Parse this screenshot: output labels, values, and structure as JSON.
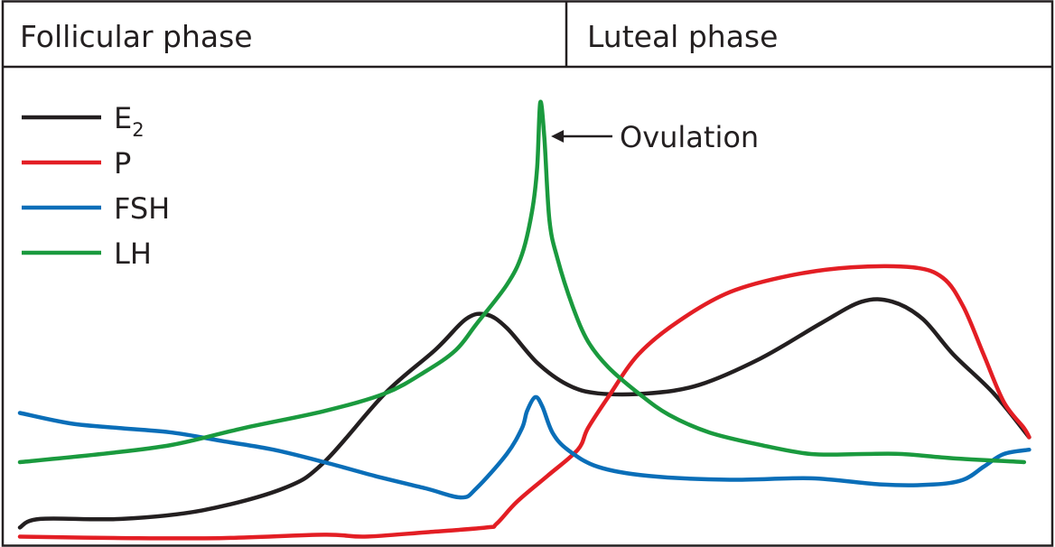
{
  "chart_data": {
    "type": "line",
    "title": "",
    "xlabel": "",
    "ylabel": "",
    "x_range": [
      0,
      100
    ],
    "y_range": [
      0,
      100
    ],
    "grid": false,
    "legend_position": "top-left",
    "phases": [
      {
        "name": "Follicular phase",
        "start": 0,
        "end": 54
      },
      {
        "name": "Luteal phase",
        "start": 54,
        "end": 100
      }
    ],
    "annotation": {
      "text": "Ovulation",
      "x": 51.3,
      "y": 84.0
    },
    "series": [
      {
        "name": "E",
        "name_sub": "2",
        "color": "#231f20",
        "points": [
          [
            0,
            3.7
          ],
          [
            2,
            5.5
          ],
          [
            10,
            5.5
          ],
          [
            18,
            7.3
          ],
          [
            26,
            11.9
          ],
          [
            30,
            17.4
          ],
          [
            36,
            31.8
          ],
          [
            41,
            41.0
          ],
          [
            44,
            47.4
          ],
          [
            46,
            48.3
          ],
          [
            48,
            45.5
          ],
          [
            51,
            38.2
          ],
          [
            54,
            33.6
          ],
          [
            57,
            31.8
          ],
          [
            62,
            31.8
          ],
          [
            67,
            33.6
          ],
          [
            73,
            39.1
          ],
          [
            79,
            46.5
          ],
          [
            83,
            51.0
          ],
          [
            86,
            51.0
          ],
          [
            89,
            47.4
          ],
          [
            92,
            40.0
          ],
          [
            96,
            31.8
          ],
          [
            99.5,
            22.6
          ]
        ]
      },
      {
        "name": "P",
        "color": "#e31e24",
        "points": [
          [
            0,
            1.8
          ],
          [
            10,
            1.5
          ],
          [
            20,
            1.5
          ],
          [
            30,
            2.2
          ],
          [
            34,
            1.8
          ],
          [
            40,
            2.7
          ],
          [
            46,
            3.7
          ],
          [
            47,
            4.5
          ],
          [
            49,
            9.1
          ],
          [
            52,
            14.5
          ],
          [
            55,
            20.0
          ],
          [
            56,
            24.5
          ],
          [
            58,
            31.0
          ],
          [
            61,
            40.0
          ],
          [
            65,
            47.0
          ],
          [
            70,
            53.0
          ],
          [
            76,
            56.5
          ],
          [
            82,
            58.2
          ],
          [
            88,
            58.2
          ],
          [
            91,
            56.0
          ],
          [
            93,
            50.0
          ],
          [
            95,
            40.0
          ],
          [
            97,
            30.0
          ],
          [
            99,
            24.5
          ],
          [
            99.5,
            22.6
          ]
        ]
      },
      {
        "name": "FSH",
        "color": "#0a6eb8",
        "points": [
          [
            0,
            27.7
          ],
          [
            5,
            25.5
          ],
          [
            10,
            24.5
          ],
          [
            15,
            23.6
          ],
          [
            20,
            21.8
          ],
          [
            25,
            20.0
          ],
          [
            30,
            17.4
          ],
          [
            35,
            14.5
          ],
          [
            40,
            11.9
          ],
          [
            43.5,
            10.0
          ],
          [
            45,
            11.9
          ],
          [
            48,
            19.1
          ],
          [
            49.5,
            24.5
          ],
          [
            50,
            28.1
          ],
          [
            50.8,
            31.0
          ],
          [
            51.5,
            29.1
          ],
          [
            52.5,
            23.6
          ],
          [
            54,
            20.0
          ],
          [
            57,
            16.4
          ],
          [
            62,
            14.5
          ],
          [
            70,
            13.7
          ],
          [
            78,
            14.0
          ],
          [
            85,
            12.7
          ],
          [
            90,
            12.7
          ],
          [
            93,
            13.7
          ],
          [
            95,
            16.4
          ],
          [
            97,
            19.1
          ],
          [
            99.5,
            20.0
          ]
        ]
      },
      {
        "name": "LH",
        "color": "#1a9a3e",
        "points": [
          [
            0,
            17.4
          ],
          [
            8,
            19.1
          ],
          [
            15,
            21.0
          ],
          [
            22,
            24.5
          ],
          [
            30,
            28.1
          ],
          [
            36,
            31.8
          ],
          [
            40,
            36.4
          ],
          [
            43,
            40.9
          ],
          [
            45,
            46.3
          ],
          [
            48,
            54.5
          ],
          [
            49.5,
            60.9
          ],
          [
            50.5,
            70.0
          ],
          [
            51,
            79.1
          ],
          [
            51.3,
            92.7
          ],
          [
            51.7,
            85.5
          ],
          [
            52.2,
            68.2
          ],
          [
            53,
            60.0
          ],
          [
            54.5,
            50.0
          ],
          [
            56,
            42.7
          ],
          [
            58,
            37.3
          ],
          [
            61,
            31.8
          ],
          [
            64,
            27.3
          ],
          [
            68,
            23.6
          ],
          [
            73,
            21.0
          ],
          [
            78,
            19.1
          ],
          [
            83,
            19.1
          ],
          [
            87,
            19.1
          ],
          [
            92,
            18.2
          ],
          [
            99,
            17.4
          ]
        ]
      }
    ]
  }
}
